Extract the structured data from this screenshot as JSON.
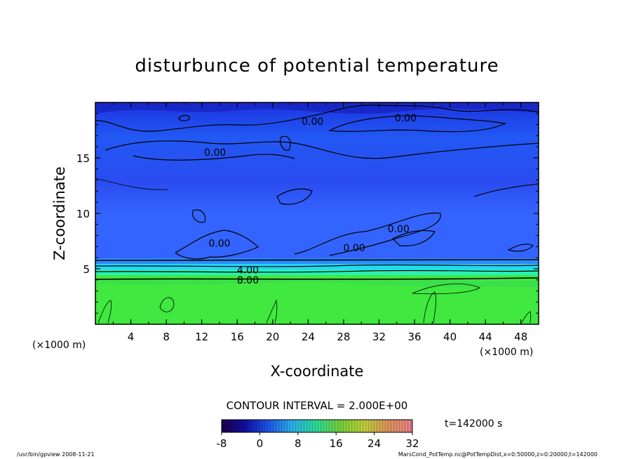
{
  "chart_data": {
    "type": "heatmap",
    "title": "disturbunce of potential temperature",
    "xlabel": "X-coordinate",
    "ylabel": "Z-coordinate",
    "x_unit_left": "(×1000 m)",
    "x_unit_right": "(×1000 m)",
    "xlim": [
      0,
      50
    ],
    "ylim": [
      0,
      20
    ],
    "x_ticks": [
      4,
      8,
      12,
      16,
      20,
      24,
      28,
      32,
      36,
      40,
      44,
      48
    ],
    "y_ticks": [
      5,
      10,
      15
    ],
    "grid": false,
    "contour_interval_text": "CONTOUR INTERVAL = 2.000E+00",
    "time_text": "t=142000 s",
    "colorbar": {
      "ticks": [
        -8,
        0,
        8,
        16,
        24,
        32
      ],
      "range": [
        -8,
        32
      ],
      "colors": [
        "#200050",
        "#0000c0",
        "#1850ff",
        "#30c0ff",
        "#30f0a0",
        "#40e040",
        "#c0e840",
        "#f0c050",
        "#e05050",
        "#ff8898"
      ]
    },
    "contour_labels": [
      {
        "text": "0.00",
        "x": 35,
        "z": 18.6
      },
      {
        "text": "0.00",
        "x": 24.5,
        "z": 18.3
      },
      {
        "text": "0.00",
        "x": 13.5,
        "z": 15.5
      },
      {
        "text": "0.00",
        "x": 34.2,
        "z": 8.6
      },
      {
        "text": "0.00",
        "x": 14,
        "z": 7.3
      },
      {
        "text": "0.00",
        "x": 29.2,
        "z": 6.9
      },
      {
        "text": "4.00",
        "x": 17.2,
        "z": 4.9
      },
      {
        "text": "8.00",
        "x": 17.2,
        "z": 4.0
      }
    ],
    "footer_left": "/usr/bin/gpview   2008-11-21",
    "footer_right": "MarsCond_PotTemp.nc@PotTempDist,x=0:50000,z=0:20000,t=142000"
  }
}
